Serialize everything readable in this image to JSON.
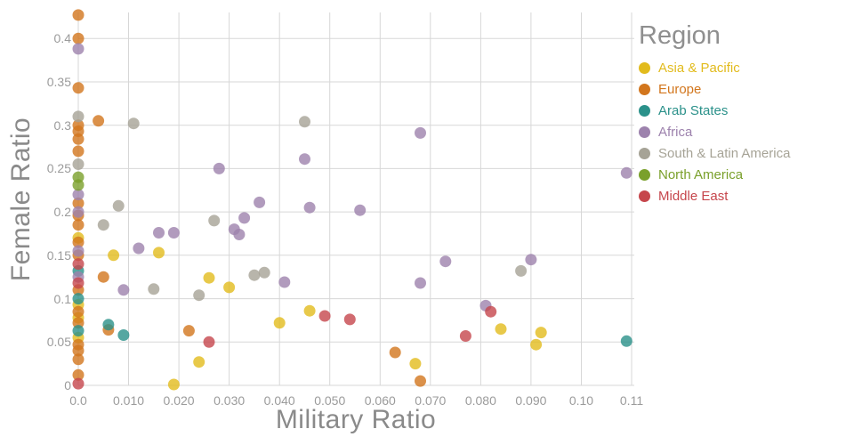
{
  "chart_data": {
    "type": "scatter",
    "title": "",
    "xlabel": "Military Ratio",
    "ylabel": "Female Ratio",
    "legend_title": "Region",
    "legend_position": "right",
    "grid": true,
    "xlim": [
      0,
      0.11
    ],
    "ylim": [
      0,
      0.43
    ],
    "x_ticks": [
      0,
      0.01,
      0.02,
      0.03,
      0.04,
      0.05,
      0.06,
      0.07,
      0.08,
      0.09,
      0.1,
      0.11
    ],
    "x_tick_labels": [
      "0.0",
      "0.010",
      "0.020",
      "0.030",
      "0.040",
      "0.050",
      "0.060",
      "0.070",
      "0.080",
      "0.090",
      "0.10",
      "0.11"
    ],
    "y_ticks": [
      0,
      0.05,
      0.1,
      0.15,
      0.2,
      0.25,
      0.3,
      0.35,
      0.4
    ],
    "y_tick_labels": [
      "0",
      "0.05",
      "0.1",
      "0.15",
      "0.2",
      "0.25",
      "0.3",
      "0.35",
      "0.4"
    ],
    "colors": {
      "grid": "#d7d7d7",
      "tick_text": "#9b9b9b",
      "axis_title_text": "#8a8a8a",
      "legend_title_text": "#8f8f8f"
    },
    "series": [
      {
        "name": "Asia & Pacific",
        "color": "#e2bb1d",
        "points": [
          [
            0.0,
            0.17
          ],
          [
            0.0,
            0.093
          ],
          [
            0.0,
            0.078
          ],
          [
            0.0,
            0.055
          ],
          [
            0.007,
            0.15
          ],
          [
            0.016,
            0.153
          ],
          [
            0.019,
            0.001
          ],
          [
            0.024,
            0.027
          ],
          [
            0.026,
            0.124
          ],
          [
            0.03,
            0.113
          ],
          [
            0.04,
            0.072
          ],
          [
            0.046,
            0.086
          ],
          [
            0.067,
            0.025
          ],
          [
            0.084,
            0.065
          ],
          [
            0.091,
            0.047
          ],
          [
            0.092,
            0.061
          ]
        ]
      },
      {
        "name": "Europe",
        "color": "#d2761d",
        "points": [
          [
            0.0,
            0.427
          ],
          [
            0.0,
            0.4
          ],
          [
            0.0,
            0.343
          ],
          [
            0.0,
            0.3
          ],
          [
            0.0,
            0.293
          ],
          [
            0.0,
            0.284
          ],
          [
            0.0,
            0.27
          ],
          [
            0.0,
            0.21
          ],
          [
            0.0,
            0.196
          ],
          [
            0.0,
            0.185
          ],
          [
            0.0,
            0.165
          ],
          [
            0.0,
            0.15
          ],
          [
            0.0,
            0.11
          ],
          [
            0.0,
            0.085
          ],
          [
            0.0,
            0.072
          ],
          [
            0.0,
            0.047
          ],
          [
            0.0,
            0.04
          ],
          [
            0.0,
            0.03
          ],
          [
            0.0,
            0.012
          ],
          [
            0.004,
            0.305
          ],
          [
            0.005,
            0.125
          ],
          [
            0.006,
            0.064
          ],
          [
            0.022,
            0.063
          ],
          [
            0.063,
            0.038
          ],
          [
            0.068,
            0.005
          ]
        ]
      },
      {
        "name": "Arab States",
        "color": "#2b918a",
        "points": [
          [
            0.0,
            0.132
          ],
          [
            0.0,
            0.1
          ],
          [
            0.0,
            0.063
          ],
          [
            0.006,
            0.07
          ],
          [
            0.009,
            0.058
          ],
          [
            0.109,
            0.051
          ]
        ]
      },
      {
        "name": "Africa",
        "color": "#9d82ad",
        "points": [
          [
            0.0,
            0.388
          ],
          [
            0.0,
            0.22
          ],
          [
            0.0,
            0.2
          ],
          [
            0.0,
            0.155
          ],
          [
            0.0,
            0.125
          ],
          [
            0.009,
            0.11
          ],
          [
            0.012,
            0.158
          ],
          [
            0.016,
            0.176
          ],
          [
            0.019,
            0.176
          ],
          [
            0.028,
            0.25
          ],
          [
            0.031,
            0.18
          ],
          [
            0.032,
            0.174
          ],
          [
            0.033,
            0.193
          ],
          [
            0.036,
            0.211
          ],
          [
            0.041,
            0.119
          ],
          [
            0.045,
            0.261
          ],
          [
            0.046,
            0.205
          ],
          [
            0.056,
            0.202
          ],
          [
            0.068,
            0.291
          ],
          [
            0.068,
            0.118
          ],
          [
            0.073,
            0.143
          ],
          [
            0.081,
            0.092
          ],
          [
            0.09,
            0.145
          ],
          [
            0.109,
            0.245
          ]
        ]
      },
      {
        "name": "South & Latin America",
        "color": "#a6a396",
        "points": [
          [
            0.0,
            0.31
          ],
          [
            0.0,
            0.255
          ],
          [
            0.005,
            0.185
          ],
          [
            0.008,
            0.207
          ],
          [
            0.011,
            0.302
          ],
          [
            0.015,
            0.111
          ],
          [
            0.024,
            0.104
          ],
          [
            0.027,
            0.19
          ],
          [
            0.035,
            0.127
          ],
          [
            0.037,
            0.13
          ],
          [
            0.045,
            0.304
          ],
          [
            0.088,
            0.132
          ]
        ]
      },
      {
        "name": "North America",
        "color": "#7aa02b",
        "points": [
          [
            0.0,
            0.24
          ],
          [
            0.0,
            0.231
          ]
        ]
      },
      {
        "name": "Middle East",
        "color": "#c6464c",
        "points": [
          [
            0.0,
            0.14
          ],
          [
            0.0,
            0.118
          ],
          [
            0.0,
            0.002
          ],
          [
            0.026,
            0.05
          ],
          [
            0.049,
            0.08
          ],
          [
            0.054,
            0.076
          ],
          [
            0.077,
            0.057
          ],
          [
            0.082,
            0.085
          ]
        ]
      }
    ]
  }
}
